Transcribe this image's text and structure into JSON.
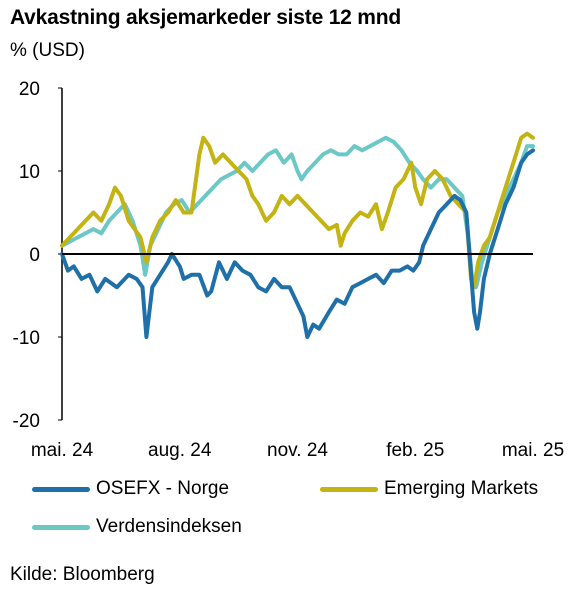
{
  "header": {
    "title": "Avkastning aksjemarkeder siste 12 mnd",
    "unit": "% (USD)"
  },
  "footer": {
    "source": "Kilde: Bloomberg"
  },
  "colors": {
    "osefx": "#1f6fa8",
    "emerging": "#c3b313",
    "world": "#6cc7c7",
    "axis": "#000000"
  },
  "chart_data": {
    "type": "line",
    "title": "Avkastning aksjemarkeder siste 12 mnd",
    "ylabel": "% (USD)",
    "xlabel": "",
    "ylim": [
      -20,
      20
    ],
    "yticks": [
      20,
      10,
      0,
      -10,
      -20
    ],
    "xlim": [
      0,
      12
    ],
    "xticks": [
      {
        "x": 0,
        "label": "mai. 24"
      },
      {
        "x": 3,
        "label": "aug. 24"
      },
      {
        "x": 6,
        "label": "nov. 24"
      },
      {
        "x": 9,
        "label": "feb. 25"
      },
      {
        "x": 12,
        "label": "mai. 25"
      }
    ],
    "legend_position": "bottom",
    "grid": false,
    "series": [
      {
        "name": "OSEFX - Norge",
        "color": "#1f6fa8",
        "points": [
          [
            0,
            0
          ],
          [
            0.15,
            -2
          ],
          [
            0.3,
            -1.5
          ],
          [
            0.5,
            -3
          ],
          [
            0.7,
            -2.5
          ],
          [
            0.9,
            -4.5
          ],
          [
            1.1,
            -3
          ],
          [
            1.4,
            -4
          ],
          [
            1.7,
            -2.5
          ],
          [
            1.9,
            -3
          ],
          [
            2.05,
            -4
          ],
          [
            2.15,
            -10
          ],
          [
            2.3,
            -4
          ],
          [
            2.5,
            -2.5
          ],
          [
            2.7,
            -1
          ],
          [
            2.8,
            0
          ],
          [
            3.0,
            -1.5
          ],
          [
            3.1,
            -3
          ],
          [
            3.3,
            -2.5
          ],
          [
            3.5,
            -2.5
          ],
          [
            3.7,
            -5
          ],
          [
            3.8,
            -4.5
          ],
          [
            4.0,
            -1
          ],
          [
            4.2,
            -3
          ],
          [
            4.4,
            -1
          ],
          [
            4.6,
            -2
          ],
          [
            4.8,
            -2.5
          ],
          [
            5.0,
            -4
          ],
          [
            5.2,
            -4.5
          ],
          [
            5.4,
            -3
          ],
          [
            5.6,
            -4
          ],
          [
            5.8,
            -4
          ],
          [
            6.0,
            -6
          ],
          [
            6.15,
            -7.5
          ],
          [
            6.25,
            -10
          ],
          [
            6.4,
            -8.5
          ],
          [
            6.55,
            -9
          ],
          [
            6.8,
            -7
          ],
          [
            7.0,
            -5.5
          ],
          [
            7.2,
            -6
          ],
          [
            7.4,
            -4
          ],
          [
            7.6,
            -3.5
          ],
          [
            7.8,
            -3
          ],
          [
            8.0,
            -2.5
          ],
          [
            8.2,
            -3.5
          ],
          [
            8.4,
            -2
          ],
          [
            8.6,
            -2
          ],
          [
            8.8,
            -1.5
          ],
          [
            8.95,
            -2
          ],
          [
            9.1,
            -1
          ],
          [
            9.2,
            1
          ],
          [
            9.4,
            3
          ],
          [
            9.6,
            5
          ],
          [
            9.8,
            6
          ],
          [
            10.0,
            7
          ],
          [
            10.15,
            6.5
          ],
          [
            10.3,
            5
          ],
          [
            10.4,
            -1
          ],
          [
            10.5,
            -7
          ],
          [
            10.58,
            -9
          ],
          [
            10.65,
            -7
          ],
          [
            10.75,
            -3
          ],
          [
            10.9,
            0
          ],
          [
            11.1,
            3
          ],
          [
            11.3,
            6
          ],
          [
            11.5,
            8
          ],
          [
            11.7,
            11
          ],
          [
            11.85,
            12
          ],
          [
            12,
            12.5
          ]
        ]
      },
      {
        "name": "Emerging Markets",
        "color": "#c3b313",
        "points": [
          [
            0,
            1
          ],
          [
            0.2,
            2
          ],
          [
            0.4,
            3
          ],
          [
            0.6,
            4
          ],
          [
            0.8,
            5
          ],
          [
            1.0,
            4
          ],
          [
            1.2,
            6
          ],
          [
            1.35,
            8
          ],
          [
            1.5,
            7
          ],
          [
            1.7,
            4
          ],
          [
            1.85,
            3
          ],
          [
            2.0,
            2
          ],
          [
            2.15,
            -1
          ],
          [
            2.3,
            2
          ],
          [
            2.5,
            4
          ],
          [
            2.7,
            5
          ],
          [
            2.9,
            6.5
          ],
          [
            3.1,
            5
          ],
          [
            3.3,
            5
          ],
          [
            3.5,
            12
          ],
          [
            3.6,
            14
          ],
          [
            3.75,
            13
          ],
          [
            3.9,
            11
          ],
          [
            4.1,
            12
          ],
          [
            4.3,
            11
          ],
          [
            4.5,
            10
          ],
          [
            4.7,
            9
          ],
          [
            4.85,
            7
          ],
          [
            5.0,
            6
          ],
          [
            5.2,
            4
          ],
          [
            5.4,
            5
          ],
          [
            5.6,
            7
          ],
          [
            5.8,
            6
          ],
          [
            6.0,
            7
          ],
          [
            6.2,
            6
          ],
          [
            6.4,
            5
          ],
          [
            6.6,
            4
          ],
          [
            6.8,
            3
          ],
          [
            7.0,
            3.5
          ],
          [
            7.1,
            1
          ],
          [
            7.2,
            2.5
          ],
          [
            7.4,
            4
          ],
          [
            7.6,
            5
          ],
          [
            7.8,
            4.5
          ],
          [
            8.0,
            6
          ],
          [
            8.15,
            3
          ],
          [
            8.3,
            5
          ],
          [
            8.5,
            8
          ],
          [
            8.7,
            9
          ],
          [
            8.9,
            11
          ],
          [
            9.0,
            8
          ],
          [
            9.15,
            6
          ],
          [
            9.3,
            9
          ],
          [
            9.5,
            10
          ],
          [
            9.7,
            9
          ],
          [
            9.9,
            7
          ],
          [
            10.1,
            6
          ],
          [
            10.3,
            5
          ],
          [
            10.42,
            -3
          ],
          [
            10.5,
            -4
          ],
          [
            10.6,
            -1
          ],
          [
            10.75,
            1
          ],
          [
            10.9,
            2
          ],
          [
            11.1,
            5
          ],
          [
            11.3,
            8
          ],
          [
            11.5,
            11
          ],
          [
            11.7,
            14
          ],
          [
            11.85,
            14.5
          ],
          [
            12,
            14
          ]
        ]
      },
      {
        "name": "Verdensindeksen",
        "color": "#6cc7c7",
        "points": [
          [
            0,
            1
          ],
          [
            0.2,
            1.5
          ],
          [
            0.4,
            2
          ],
          [
            0.6,
            2.5
          ],
          [
            0.8,
            3
          ],
          [
            1.0,
            2.5
          ],
          [
            1.2,
            4
          ],
          [
            1.4,
            5
          ],
          [
            1.6,
            6
          ],
          [
            1.8,
            4
          ],
          [
            2.0,
            1
          ],
          [
            2.12,
            -2.5
          ],
          [
            2.25,
            1
          ],
          [
            2.45,
            3
          ],
          [
            2.65,
            5
          ],
          [
            2.85,
            6
          ],
          [
            3.05,
            6.5
          ],
          [
            3.25,
            5
          ],
          [
            3.45,
            6
          ],
          [
            3.65,
            7
          ],
          [
            3.85,
            8
          ],
          [
            4.05,
            9
          ],
          [
            4.25,
            9.5
          ],
          [
            4.45,
            10
          ],
          [
            4.65,
            11
          ],
          [
            4.85,
            10
          ],
          [
            5.05,
            11
          ],
          [
            5.25,
            12
          ],
          [
            5.45,
            12.5
          ],
          [
            5.65,
            11
          ],
          [
            5.85,
            12
          ],
          [
            6.0,
            10
          ],
          [
            6.1,
            9
          ],
          [
            6.25,
            10
          ],
          [
            6.45,
            11
          ],
          [
            6.65,
            12
          ],
          [
            6.85,
            12.5
          ],
          [
            7.05,
            12
          ],
          [
            7.25,
            12
          ],
          [
            7.45,
            13
          ],
          [
            7.65,
            12.5
          ],
          [
            7.85,
            13
          ],
          [
            8.05,
            13.5
          ],
          [
            8.25,
            14
          ],
          [
            8.45,
            13.5
          ],
          [
            8.65,
            12.5
          ],
          [
            8.85,
            11
          ],
          [
            9.05,
            10
          ],
          [
            9.2,
            9
          ],
          [
            9.4,
            8
          ],
          [
            9.6,
            9
          ],
          [
            9.8,
            9
          ],
          [
            10.0,
            8
          ],
          [
            10.2,
            7
          ],
          [
            10.35,
            2
          ],
          [
            10.45,
            -3
          ],
          [
            10.55,
            -4
          ],
          [
            10.7,
            -1
          ],
          [
            10.9,
            2
          ],
          [
            11.1,
            5
          ],
          [
            11.3,
            7
          ],
          [
            11.5,
            9
          ],
          [
            11.7,
            11
          ],
          [
            11.85,
            13
          ],
          [
            12,
            13
          ]
        ]
      }
    ]
  },
  "legend": [
    {
      "label": "OSEFX - Norge",
      "color": "#1f6fa8"
    },
    {
      "label": "Emerging Markets",
      "color": "#c3b313"
    },
    {
      "label": "Verdensindeksen",
      "color": "#6cc7c7"
    }
  ]
}
